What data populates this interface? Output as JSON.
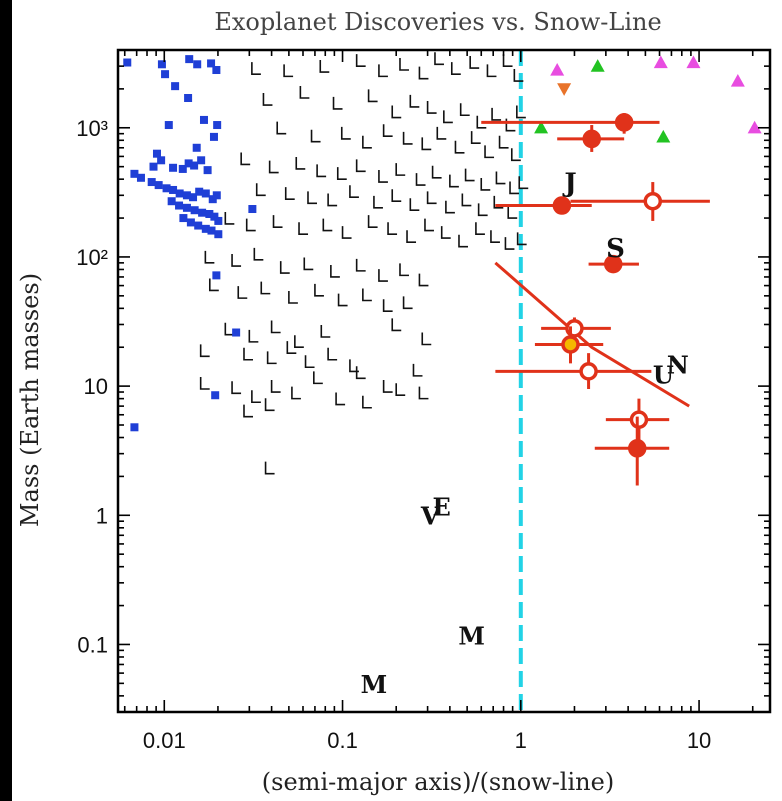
{
  "chart_data": {
    "type": "scatter",
    "title": "Exoplanet Discoveries vs. Snow-Line",
    "xlabel": "(semi-major axis)/(snow-line)",
    "ylabel": "Mass (Earth masses)",
    "xscale": "log",
    "yscale": "log",
    "xlim": [
      0.0055,
      25
    ],
    "ylim": [
      0.03,
      4000
    ],
    "x_ticks": [
      {
        "value": 0.01,
        "label": "0.01"
      },
      {
        "value": 0.1,
        "label": "0.1"
      },
      {
        "value": 1,
        "label": "1"
      },
      {
        "value": 10,
        "label": "10"
      }
    ],
    "y_ticks": [
      {
        "value": 0.1,
        "label": "0.1"
      },
      {
        "value": 1,
        "label": "1"
      },
      {
        "value": 10,
        "label": "10"
      },
      {
        "value": 100,
        "label": "10²"
      },
      {
        "value": 1000,
        "label": "10³"
      }
    ],
    "snow_line_x": 1,
    "colors": {
      "frame": "#000000",
      "transit": "#1f3fd6",
      "rv": "#111111",
      "microlensing": "#e0321a",
      "microlensing_fill": "#f5b800",
      "snowline": "#22d3e6",
      "green": "#22c322",
      "magenta": "#e84de0",
      "orange": "#e8732a"
    },
    "transit_points": [
      [
        0.0062,
        3200
      ],
      [
        0.0097,
        3100
      ],
      [
        0.0138,
        3400
      ],
      [
        0.0101,
        2600
      ],
      [
        0.0115,
        2100
      ],
      [
        0.0153,
        3100
      ],
      [
        0.0183,
        3150
      ],
      [
        0.0196,
        2800
      ],
      [
        0.0106,
        1050
      ],
      [
        0.0136,
        1700
      ],
      [
        0.0167,
        1150
      ],
      [
        0.0198,
        1050
      ],
      [
        0.019,
        850
      ],
      [
        0.0152,
        700
      ],
      [
        0.0091,
        630
      ],
      [
        0.0096,
        560
      ],
      [
        0.0087,
        500
      ],
      [
        0.0112,
        490
      ],
      [
        0.0127,
        480
      ],
      [
        0.0137,
        530
      ],
      [
        0.0147,
        510
      ],
      [
        0.0161,
        560
      ],
      [
        0.0175,
        470
      ],
      [
        0.0068,
        440
      ],
      [
        0.0074,
        410
      ],
      [
        0.0085,
        380
      ],
      [
        0.0093,
        360
      ],
      [
        0.0103,
        340
      ],
      [
        0.0112,
        330
      ],
      [
        0.0122,
        310
      ],
      [
        0.0134,
        300
      ],
      [
        0.0145,
        290
      ],
      [
        0.0157,
        320
      ],
      [
        0.0171,
        310
      ],
      [
        0.0187,
        280
      ],
      [
        0.0197,
        300
      ],
      [
        0.011,
        270
      ],
      [
        0.0121,
        250
      ],
      [
        0.0134,
        240
      ],
      [
        0.0148,
        230
      ],
      [
        0.0163,
        220
      ],
      [
        0.0179,
        215
      ],
      [
        0.0191,
        205
      ],
      [
        0.0201,
        190
      ],
      [
        0.0128,
        200
      ],
      [
        0.0141,
        185
      ],
      [
        0.0155,
        175
      ],
      [
        0.0171,
        165
      ],
      [
        0.0184,
        160
      ],
      [
        0.0201,
        150
      ],
      [
        0.0312,
        235
      ],
      [
        0.0196,
        72
      ],
      [
        0.0253,
        26
      ],
      [
        0.0193,
        8.5
      ],
      [
        0.0068,
        4.8
      ]
    ],
    "rv_points": [
      [
        0.031,
        2600
      ],
      [
        0.047,
        2500
      ],
      [
        0.075,
        2700
      ],
      [
        0.12,
        3000
      ],
      [
        0.16,
        2500
      ],
      [
        0.21,
        2800
      ],
      [
        0.27,
        2400
      ],
      [
        0.33,
        3100
      ],
      [
        0.41,
        2600
      ],
      [
        0.52,
        2900
      ],
      [
        0.65,
        2500
      ],
      [
        0.8,
        3000
      ],
      [
        0.92,
        2300
      ],
      [
        0.036,
        1500
      ],
      [
        0.058,
        1700
      ],
      [
        0.089,
        1400
      ],
      [
        0.14,
        1600
      ],
      [
        0.19,
        1200
      ],
      [
        0.24,
        1450
      ],
      [
        0.3,
        1300
      ],
      [
        0.37,
        1100
      ],
      [
        0.46,
        1250
      ],
      [
        0.57,
        1000
      ],
      [
        0.69,
        1150
      ],
      [
        0.83,
        950
      ],
      [
        0.95,
        1200
      ],
      [
        0.043,
        900
      ],
      [
        0.067,
        780
      ],
      [
        0.099,
        820
      ],
      [
        0.13,
        700
      ],
      [
        0.17,
        860
      ],
      [
        0.22,
        750
      ],
      [
        0.28,
        680
      ],
      [
        0.34,
        820
      ],
      [
        0.43,
        640
      ],
      [
        0.53,
        760
      ],
      [
        0.63,
        590
      ],
      [
        0.76,
        700
      ],
      [
        0.89,
        560
      ],
      [
        0.027,
        520
      ],
      [
        0.039,
        450
      ],
      [
        0.055,
        480
      ],
      [
        0.072,
        420
      ],
      [
        0.094,
        400
      ],
      [
        0.12,
        460
      ],
      [
        0.16,
        380
      ],
      [
        0.2,
        430
      ],
      [
        0.26,
        360
      ],
      [
        0.32,
        410
      ],
      [
        0.4,
        350
      ],
      [
        0.49,
        390
      ],
      [
        0.6,
        330
      ],
      [
        0.73,
        370
      ],
      [
        0.87,
        310
      ],
      [
        0.98,
        340
      ],
      [
        0.033,
        300
      ],
      [
        0.048,
        280
      ],
      [
        0.064,
        260
      ],
      [
        0.083,
        250
      ],
      [
        0.11,
        290
      ],
      [
        0.15,
        240
      ],
      [
        0.19,
        270
      ],
      [
        0.24,
        230
      ],
      [
        0.3,
        260
      ],
      [
        0.38,
        220
      ],
      [
        0.47,
        250
      ],
      [
        0.58,
        210
      ],
      [
        0.71,
        240
      ],
      [
        0.85,
        200
      ],
      [
        0.022,
        180
      ],
      [
        0.029,
        160
      ],
      [
        0.041,
        170
      ],
      [
        0.057,
        150
      ],
      [
        0.078,
        160
      ],
      [
        0.1,
        140
      ],
      [
        0.14,
        170
      ],
      [
        0.18,
        150
      ],
      [
        0.23,
        130
      ],
      [
        0.29,
        160
      ],
      [
        0.36,
        140
      ],
      [
        0.45,
        120
      ],
      [
        0.56,
        150
      ],
      [
        0.68,
        130
      ],
      [
        0.82,
        115
      ],
      [
        0.96,
        125
      ],
      [
        0.017,
        90
      ],
      [
        0.024,
        85
      ],
      [
        0.032,
        95
      ],
      [
        0.045,
        75
      ],
      [
        0.061,
        80
      ],
      [
        0.086,
        70
      ],
      [
        0.12,
        78
      ],
      [
        0.16,
        65
      ],
      [
        0.21,
        72
      ],
      [
        0.27,
        60
      ],
      [
        0.018,
        55
      ],
      [
        0.026,
        48
      ],
      [
        0.035,
        52
      ],
      [
        0.05,
        44
      ],
      [
        0.07,
        50
      ],
      [
        0.095,
        42
      ],
      [
        0.13,
        46
      ],
      [
        0.17,
        38
      ],
      [
        0.22,
        40
      ],
      [
        0.19,
        27
      ],
      [
        0.022,
        25
      ],
      [
        0.03,
        22
      ],
      [
        0.04,
        26
      ],
      [
        0.054,
        20
      ],
      [
        0.076,
        24
      ],
      [
        0.28,
        21
      ],
      [
        0.016,
        17
      ],
      [
        0.028,
        16
      ],
      [
        0.038,
        15
      ],
      [
        0.049,
        18
      ],
      [
        0.062,
        14
      ],
      [
        0.083,
        16
      ],
      [
        0.11,
        13
      ],
      [
        0.016,
        9.5
      ],
      [
        0.024,
        8.8
      ],
      [
        0.031,
        7.5
      ],
      [
        0.04,
        9.0
      ],
      [
        0.052,
        8.0
      ],
      [
        0.069,
        10.5
      ],
      [
        0.092,
        7.2
      ],
      [
        0.13,
        6.8
      ],
      [
        0.2,
        8.5
      ],
      [
        0.028,
        5.8
      ],
      [
        0.037,
        6.5
      ],
      [
        0.27,
        8.0
      ],
      [
        0.037,
        2.1
      ],
      [
        0.12,
        11.5
      ],
      [
        0.17,
        9.0
      ],
      [
        0.25,
        12.0
      ]
    ],
    "microlensing_points": [
      {
        "x": 3.8,
        "y": 1100,
        "xerr": [
          0.6,
          6.0
        ],
        "yerr": [
          900,
          1300
        ],
        "filled": true
      },
      {
        "x": 2.5,
        "y": 820,
        "xerr": [
          1.6,
          3.8
        ],
        "yerr": [
          650,
          1050
        ],
        "filled": true
      },
      {
        "x": 1.7,
        "y": 250,
        "xerr": [
          0.72,
          2.5
        ],
        "yerr": [
          215,
          290
        ],
        "filled": true
      },
      {
        "x": 5.5,
        "y": 270,
        "xerr": [
          1.9,
          11.5
        ],
        "yerr": [
          190,
          380
        ],
        "filled": false
      },
      {
        "x": 3.3,
        "y": 88,
        "xerr": [
          2.4,
          4.6
        ],
        "yerr": [
          78,
          98
        ],
        "filled": true
      },
      {
        "x": 2.0,
        "y": 28,
        "xerr": [
          1.3,
          3.2
        ],
        "yerr": [
          23,
          34
        ],
        "filled": false
      },
      {
        "x": 1.9,
        "y": 21,
        "xerr": [
          1.2,
          2.9
        ],
        "yerr": [
          15,
          29
        ],
        "filled": true,
        "fill": "#f5b800"
      },
      {
        "x": 2.4,
        "y": 13,
        "xerr": [
          0.72,
          5.4
        ],
        "yerr": [
          9.5,
          18
        ],
        "filled": false
      },
      {
        "x": 4.6,
        "y": 5.5,
        "xerr": [
          3.0,
          6.8
        ],
        "yerr": [
          3.6,
          8.0
        ],
        "filled": false
      },
      {
        "x": 4.5,
        "y": 3.3,
        "xerr": [
          2.6,
          6.8
        ],
        "yerr": [
          1.7,
          5.8
        ],
        "filled": true
      }
    ],
    "triangles_up_green": [
      [
        1.3,
        1000
      ],
      [
        2.7,
        3000
      ],
      [
        6.3,
        850
      ]
    ],
    "triangles_up_magenta": [
      [
        1.6,
        2800
      ],
      [
        6.1,
        3200
      ],
      [
        9.3,
        3200
      ],
      [
        16.5,
        2300
      ],
      [
        20.5,
        1000
      ]
    ],
    "triangles_down_orange": [
      [
        1.75,
        2000
      ]
    ],
    "core_accretion_line": [
      [
        0.72,
        90
      ],
      [
        2.5,
        20
      ],
      [
        8.8,
        7.0
      ]
    ],
    "solar_system_labels": [
      {
        "label": "J",
        "x": 1.9,
        "y": 320,
        "size": 26
      },
      {
        "label": "S",
        "x": 3.4,
        "y": 100,
        "size": 26
      },
      {
        "label": "U",
        "x": 6.3,
        "y": 10.5,
        "size": 24
      },
      {
        "label": "N",
        "x": 7.6,
        "y": 12.5,
        "size": 24
      },
      {
        "label": "V",
        "x": 0.31,
        "y": 0.85,
        "size": 24
      },
      {
        "label": "E",
        "x": 0.36,
        "y": 1.0,
        "size": 24
      },
      {
        "label": "M",
        "x": 0.53,
        "y": 0.1,
        "size": 24
      },
      {
        "label": "M",
        "x": 0.15,
        "y": 0.042,
        "size": 24
      }
    ]
  }
}
